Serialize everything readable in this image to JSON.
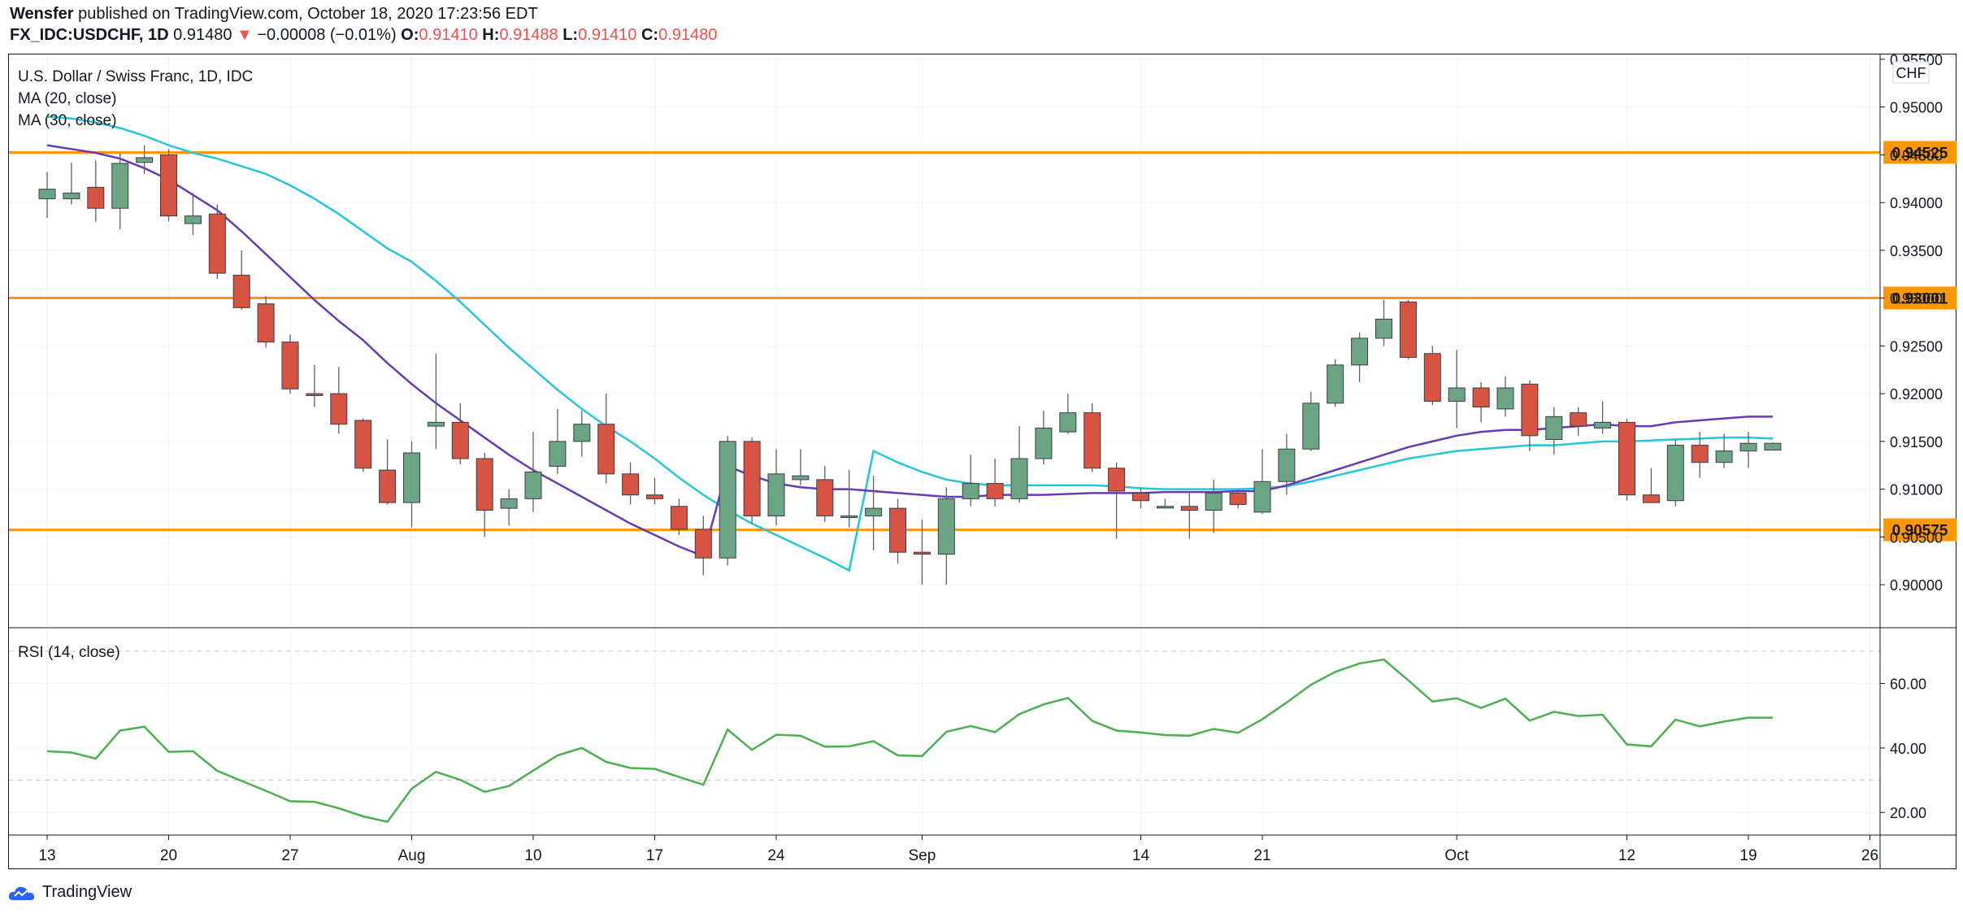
{
  "header": {
    "publisher": "Wensfer",
    "published_text": "published on TradingView.com, October 18, 2020 17:23:56 EDT",
    "symbol": "FX_IDC:USDCHF, 1D",
    "last": "0.91480",
    "change_arrow": "▼",
    "change": "−0.00008 (−0.01%)",
    "o_label": "O:",
    "o_value": "0.91410",
    "h_label": "H:",
    "h_value": "0.91488",
    "l_label": "L:",
    "l_value": "0.91410",
    "c_label": "C:",
    "c_value": "0.91480"
  },
  "chart_data": {
    "type": "candlestick",
    "title": "U.S. Dollar / Swiss Franc, 1D, IDC",
    "currency_label": "CHF",
    "legend": [
      "MA (20, close)",
      "MA (30, close)"
    ],
    "ylim": [
      0.8955,
      0.9555
    ],
    "yticks": [
      "0.95500",
      "0.95000",
      "0.94500",
      "0.94000",
      "0.93500",
      "0.93000",
      "0.92500",
      "0.92000",
      "0.91500",
      "0.91000",
      "0.90500",
      "0.90000"
    ],
    "x_ticks": [
      {
        "label": "13",
        "i": 0
      },
      {
        "label": "20",
        "i": 5
      },
      {
        "label": "27",
        "i": 10
      },
      {
        "label": "Aug",
        "i": 15
      },
      {
        "label": "10",
        "i": 20
      },
      {
        "label": "17",
        "i": 25
      },
      {
        "label": "24",
        "i": 30
      },
      {
        "label": "Sep",
        "i": 36
      },
      {
        "label": "14",
        "i": 45
      },
      {
        "label": "21",
        "i": 50
      },
      {
        "label": "Oct",
        "i": 58
      },
      {
        "label": "12",
        "i": 65
      },
      {
        "label": "19",
        "i": 70
      },
      {
        "label": "26",
        "i": 75
      }
    ],
    "hlines": [
      {
        "value": 0.94525,
        "label": "0.94525"
      },
      {
        "value": 0.93001,
        "label": "0.93001"
      },
      {
        "value": 0.90575,
        "label": "0.90575"
      }
    ],
    "colors": {
      "up": "#6ba583",
      "down": "#d75442",
      "ma20": "#673ab7",
      "ma30": "#26c6da",
      "rsi": "#4caf50",
      "hline": "#ff9800",
      "hline_label_text": "#131722"
    },
    "candles": [
      {
        "i": 0,
        "o": 0.9404,
        "h": 0.9432,
        "l": 0.9384,
        "c": 0.9414
      },
      {
        "i": 1,
        "o": 0.9404,
        "h": 0.9442,
        "l": 0.9398,
        "c": 0.941
      },
      {
        "i": 2,
        "o": 0.9416,
        "h": 0.9444,
        "l": 0.938,
        "c": 0.9394
      },
      {
        "i": 3,
        "o": 0.9394,
        "h": 0.9452,
        "l": 0.9372,
        "c": 0.9441
      },
      {
        "i": 4,
        "o": 0.9442,
        "h": 0.946,
        "l": 0.943,
        "c": 0.9447
      },
      {
        "i": 5,
        "o": 0.945,
        "h": 0.9456,
        "l": 0.938,
        "c": 0.9386
      },
      {
        "i": 6,
        "o": 0.9378,
        "h": 0.941,
        "l": 0.9366,
        "c": 0.9386
      },
      {
        "i": 7,
        "o": 0.9388,
        "h": 0.9398,
        "l": 0.932,
        "c": 0.9326
      },
      {
        "i": 8,
        "o": 0.9324,
        "h": 0.935,
        "l": 0.9288,
        "c": 0.929
      },
      {
        "i": 9,
        "o": 0.9294,
        "h": 0.9302,
        "l": 0.9248,
        "c": 0.9254
      },
      {
        "i": 10,
        "o": 0.9254,
        "h": 0.9262,
        "l": 0.92,
        "c": 0.9205
      },
      {
        "i": 11,
        "o": 0.92,
        "h": 0.923,
        "l": 0.9186,
        "c": 0.9198
      },
      {
        "i": 12,
        "o": 0.92,
        "h": 0.9228,
        "l": 0.9158,
        "c": 0.9168
      },
      {
        "i": 13,
        "o": 0.9172,
        "h": 0.9174,
        "l": 0.9118,
        "c": 0.9122
      },
      {
        "i": 14,
        "o": 0.912,
        "h": 0.9152,
        "l": 0.9084,
        "c": 0.9086
      },
      {
        "i": 15,
        "o": 0.9086,
        "h": 0.915,
        "l": 0.906,
        "c": 0.9138
      },
      {
        "i": 16,
        "o": 0.9166,
        "h": 0.9242,
        "l": 0.9142,
        "c": 0.917
      },
      {
        "i": 17,
        "o": 0.917,
        "h": 0.919,
        "l": 0.9126,
        "c": 0.9132
      },
      {
        "i": 18,
        "o": 0.9132,
        "h": 0.9138,
        "l": 0.905,
        "c": 0.9078
      },
      {
        "i": 19,
        "o": 0.908,
        "h": 0.91,
        "l": 0.9062,
        "c": 0.909
      },
      {
        "i": 20,
        "o": 0.909,
        "h": 0.916,
        "l": 0.9076,
        "c": 0.9118
      },
      {
        "i": 21,
        "o": 0.9124,
        "h": 0.9184,
        "l": 0.9116,
        "c": 0.915
      },
      {
        "i": 22,
        "o": 0.915,
        "h": 0.9182,
        "l": 0.9134,
        "c": 0.9168
      },
      {
        "i": 23,
        "o": 0.9168,
        "h": 0.92,
        "l": 0.9106,
        "c": 0.9116
      },
      {
        "i": 24,
        "o": 0.9116,
        "h": 0.9128,
        "l": 0.9084,
        "c": 0.9094
      },
      {
        "i": 25,
        "o": 0.9094,
        "h": 0.9112,
        "l": 0.9084,
        "c": 0.909
      },
      {
        "i": 26,
        "o": 0.9082,
        "h": 0.909,
        "l": 0.9052,
        "c": 0.9058
      },
      {
        "i": 27,
        "o": 0.9058,
        "h": 0.9072,
        "l": 0.901,
        "c": 0.9028
      },
      {
        "i": 28,
        "o": 0.9028,
        "h": 0.9156,
        "l": 0.902,
        "c": 0.915
      },
      {
        "i": 29,
        "o": 0.915,
        "h": 0.9154,
        "l": 0.9064,
        "c": 0.9072
      },
      {
        "i": 30,
        "o": 0.9072,
        "h": 0.9142,
        "l": 0.9062,
        "c": 0.9116
      },
      {
        "i": 31,
        "o": 0.911,
        "h": 0.9142,
        "l": 0.9104,
        "c": 0.9114
      },
      {
        "i": 32,
        "o": 0.911,
        "h": 0.9124,
        "l": 0.9066,
        "c": 0.9072
      },
      {
        "i": 33,
        "o": 0.9072,
        "h": 0.912,
        "l": 0.906,
        "c": 0.9072
      },
      {
        "i": 34,
        "o": 0.9072,
        "h": 0.9114,
        "l": 0.9036,
        "c": 0.908
      },
      {
        "i": 35,
        "o": 0.908,
        "h": 0.909,
        "l": 0.9022,
        "c": 0.9034
      },
      {
        "i": 36,
        "o": 0.9034,
        "h": 0.9068,
        "l": 0.9,
        "c": 0.9032
      },
      {
        "i": 37,
        "o": 0.9032,
        "h": 0.9102,
        "l": 0.9,
        "c": 0.909
      },
      {
        "i": 38,
        "o": 0.909,
        "h": 0.9136,
        "l": 0.9082,
        "c": 0.9106
      },
      {
        "i": 39,
        "o": 0.9106,
        "h": 0.9132,
        "l": 0.9082,
        "c": 0.909
      },
      {
        "i": 40,
        "o": 0.909,
        "h": 0.9166,
        "l": 0.9086,
        "c": 0.9132
      },
      {
        "i": 41,
        "o": 0.9132,
        "h": 0.9182,
        "l": 0.9126,
        "c": 0.9164
      },
      {
        "i": 42,
        "o": 0.916,
        "h": 0.92,
        "l": 0.9158,
        "c": 0.918
      },
      {
        "i": 43,
        "o": 0.918,
        "h": 0.919,
        "l": 0.9118,
        "c": 0.9122
      },
      {
        "i": 44,
        "o": 0.9122,
        "h": 0.9128,
        "l": 0.9048,
        "c": 0.9098
      },
      {
        "i": 45,
        "o": 0.9096,
        "h": 0.9102,
        "l": 0.908,
        "c": 0.9088
      },
      {
        "i": 46,
        "o": 0.9082,
        "h": 0.909,
        "l": 0.908,
        "c": 0.9082
      },
      {
        "i": 47,
        "o": 0.9082,
        "h": 0.9098,
        "l": 0.9048,
        "c": 0.9078
      },
      {
        "i": 48,
        "o": 0.9078,
        "h": 0.911,
        "l": 0.9054,
        "c": 0.9096
      },
      {
        "i": 49,
        "o": 0.9096,
        "h": 0.91,
        "l": 0.908,
        "c": 0.9084
      },
      {
        "i": 50,
        "o": 0.9076,
        "h": 0.9142,
        "l": 0.9074,
        "c": 0.9108
      },
      {
        "i": 51,
        "o": 0.9108,
        "h": 0.9158,
        "l": 0.9094,
        "c": 0.9142
      },
      {
        "i": 52,
        "o": 0.9142,
        "h": 0.9202,
        "l": 0.914,
        "c": 0.919
      },
      {
        "i": 53,
        "o": 0.919,
        "h": 0.9236,
        "l": 0.9186,
        "c": 0.923
      },
      {
        "i": 54,
        "o": 0.923,
        "h": 0.9264,
        "l": 0.9212,
        "c": 0.9258
      },
      {
        "i": 55,
        "o": 0.9258,
        "h": 0.9298,
        "l": 0.925,
        "c": 0.9278
      },
      {
        "i": 56,
        "o": 0.9296,
        "h": 0.9298,
        "l": 0.9236,
        "c": 0.9238
      },
      {
        "i": 57,
        "o": 0.9242,
        "h": 0.925,
        "l": 0.9188,
        "c": 0.9192
      },
      {
        "i": 58,
        "o": 0.9192,
        "h": 0.9246,
        "l": 0.9164,
        "c": 0.9206
      },
      {
        "i": 59,
        "o": 0.9206,
        "h": 0.9212,
        "l": 0.917,
        "c": 0.9186
      },
      {
        "i": 60,
        "o": 0.9184,
        "h": 0.9218,
        "l": 0.9176,
        "c": 0.9206
      },
      {
        "i": 61,
        "o": 0.921,
        "h": 0.9214,
        "l": 0.914,
        "c": 0.9156
      },
      {
        "i": 62,
        "o": 0.9152,
        "h": 0.9186,
        "l": 0.9136,
        "c": 0.9176
      },
      {
        "i": 63,
        "o": 0.918,
        "h": 0.9186,
        "l": 0.9156,
        "c": 0.9166
      },
      {
        "i": 64,
        "o": 0.9164,
        "h": 0.9192,
        "l": 0.9158,
        "c": 0.917
      },
      {
        "i": 65,
        "o": 0.917,
        "h": 0.9174,
        "l": 0.9088,
        "c": 0.9094
      },
      {
        "i": 66,
        "o": 0.9094,
        "h": 0.9122,
        "l": 0.9086,
        "c": 0.9086
      },
      {
        "i": 67,
        "o": 0.9088,
        "h": 0.9152,
        "l": 0.9082,
        "c": 0.9146
      },
      {
        "i": 68,
        "o": 0.9146,
        "h": 0.916,
        "l": 0.9112,
        "c": 0.9128
      },
      {
        "i": 69,
        "o": 0.9128,
        "h": 0.9158,
        "l": 0.9122,
        "c": 0.914
      },
      {
        "i": 70,
        "o": 0.914,
        "h": 0.916,
        "l": 0.9122,
        "c": 0.9148
      },
      {
        "i": 71,
        "o": 0.9141,
        "h": 0.91488,
        "l": 0.9141,
        "c": 0.9148
      }
    ],
    "ma20": [
      0.946,
      0.9456,
      0.9452,
      0.9446,
      0.9436,
      0.9424,
      0.9408,
      0.9392,
      0.937,
      0.9346,
      0.9322,
      0.9298,
      0.9276,
      0.9256,
      0.9232,
      0.921,
      0.919,
      0.9172,
      0.9154,
      0.9136,
      0.912,
      0.9106,
      0.9092,
      0.9078,
      0.9064,
      0.9052,
      0.904,
      0.903,
      0.9124,
      0.9114,
      0.9106,
      0.9102,
      0.91,
      0.91,
      0.9098,
      0.9096,
      0.9094,
      0.9092,
      0.9092,
      0.9094,
      0.9094,
      0.9094,
      0.9095,
      0.9096,
      0.9096,
      0.9096,
      0.9097,
      0.9097,
      0.9097,
      0.9098,
      0.9098,
      0.9104,
      0.9112,
      0.912,
      0.9128,
      0.9136,
      0.9144,
      0.915,
      0.9156,
      0.916,
      0.9162,
      0.9162,
      0.9164,
      0.9166,
      0.9168,
      0.9166,
      0.9166,
      0.917,
      0.9172,
      0.9174,
      0.9176,
      0.9176
    ],
    "ma30": [
      0.949,
      0.9488,
      0.9484,
      0.9478,
      0.947,
      0.946,
      0.9452,
      0.9446,
      0.9438,
      0.943,
      0.9418,
      0.9404,
      0.9388,
      0.937,
      0.9352,
      0.9338,
      0.9318,
      0.9296,
      0.9272,
      0.9248,
      0.9226,
      0.9204,
      0.9184,
      0.9166,
      0.915,
      0.9132,
      0.9112,
      0.9094,
      0.9078,
      0.9064,
      0.9052,
      0.904,
      0.9028,
      0.9015,
      0.914,
      0.9128,
      0.9118,
      0.911,
      0.9106,
      0.9104,
      0.9104,
      0.9104,
      0.9104,
      0.9104,
      0.9103,
      0.9101,
      0.91,
      0.91,
      0.91,
      0.91,
      0.9101,
      0.9103,
      0.9108,
      0.9114,
      0.912,
      0.9126,
      0.9132,
      0.9136,
      0.914,
      0.9142,
      0.9144,
      0.9146,
      0.9146,
      0.9148,
      0.915,
      0.915,
      0.9151,
      0.9152,
      0.9153,
      0.9154,
      0.9154,
      0.9153
    ],
    "rsi_title": "RSI (14, close)",
    "rsi_ticks": [
      "60.00",
      "40.00",
      "20.00"
    ],
    "rsi_ylim": [
      13,
      74
    ],
    "rsi_bands": [
      70,
      30
    ],
    "rsi": [
      39,
      38.6,
      36.7,
      45.4,
      46.6,
      38.8,
      39,
      32.9,
      29.8,
      26.7,
      23.5,
      23.3,
      21.3,
      18.8,
      17.1,
      27.4,
      32.6,
      30.1,
      26.4,
      28.2,
      33,
      37.7,
      40,
      35.7,
      33.8,
      33.5,
      31,
      28.6,
      45.7,
      39.4,
      44.1,
      43.8,
      40.4,
      40.5,
      42.1,
      37.7,
      37.5,
      45,
      46.8,
      44.9,
      50.5,
      53.5,
      55.5,
      48.4,
      45.4,
      44.8,
      44,
      43.8,
      45.9,
      44.7,
      48.9,
      54.1,
      59.6,
      63.6,
      66.2,
      67.4,
      61,
      54.4,
      55.4,
      52.4,
      55.3,
      48.5,
      51.2,
      49.9,
      50.3,
      41.1,
      40.5,
      48.8,
      46.7,
      48.2,
      49.4,
      49.4
    ]
  },
  "footer": {
    "brand": "TradingView"
  }
}
